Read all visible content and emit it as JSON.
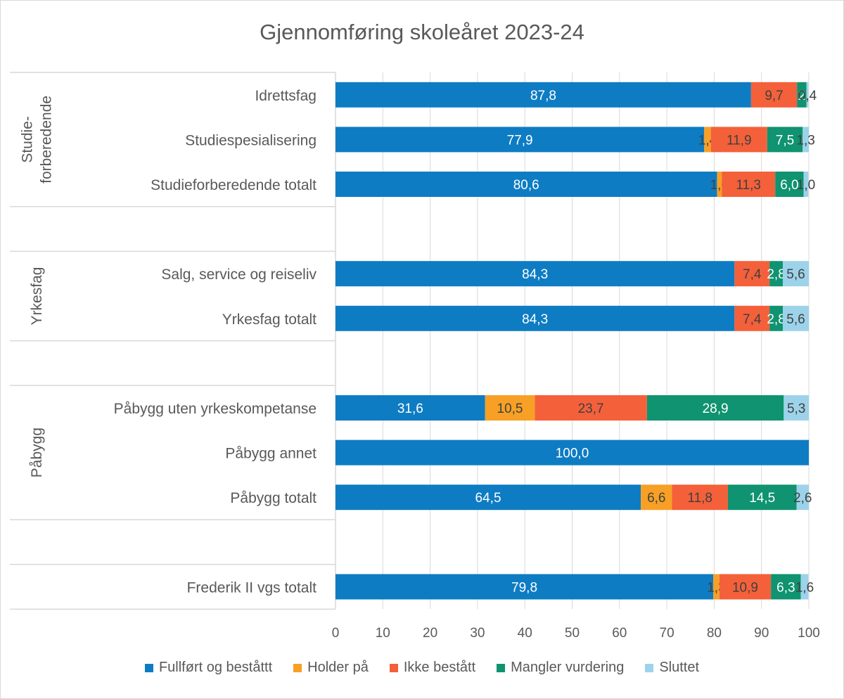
{
  "chart_data": {
    "type": "bar",
    "orientation": "horizontal",
    "stacked": true,
    "title": "Gjennomføring skoleåret 2023-24",
    "xlim": [
      0,
      100
    ],
    "x_ticks": [
      0,
      10,
      20,
      30,
      40,
      50,
      60,
      70,
      80,
      90,
      100
    ],
    "grid": true,
    "legend_position": "bottom",
    "groups": [
      {
        "label": "Studie-\nforberedende",
        "label_lines": [
          "Studie-",
          "forberedende"
        ],
        "categories": [
          "Idrettsfag",
          "Studiespesialisering",
          "Studieforberedende totalt"
        ]
      },
      {
        "label": "Yrkesfag",
        "label_lines": [
          "Yrkesfag"
        ],
        "categories": [
          "Salg, service og reiseliv",
          "Yrkesfag totalt"
        ]
      },
      {
        "label": "Påbygg",
        "label_lines": [
          "Påbygg"
        ],
        "categories": [
          "Påbygg uten yrkeskompetanse",
          "Påbygg annet",
          "Påbygg totalt"
        ]
      },
      {
        "label": "",
        "label_lines": [],
        "categories": [
          "Frederik II vgs totalt"
        ]
      }
    ],
    "categories": [
      "Idrettsfag",
      "Studiespesialisering",
      "Studieforberedende totalt",
      "Salg, service og reiseliv",
      "Yrkesfag totalt",
      "Påbygg uten yrkeskompetanse",
      "Påbygg annet",
      "Påbygg totalt",
      "Frederik II vgs totalt"
    ],
    "series": [
      {
        "name": "Fullført og beståttt",
        "color": "#0e7cc3",
        "values": [
          87.8,
          77.9,
          80.6,
          84.3,
          84.3,
          31.6,
          100.0,
          64.5,
          79.8
        ],
        "labels": [
          "87,8",
          "77,9",
          "80,6",
          "84,3",
          "84,3",
          "31,6",
          "100,0",
          "64,5",
          "79,8"
        ]
      },
      {
        "name": "Holder på",
        "color": "#f7a025",
        "values": [
          0,
          1.4,
          1.0,
          0,
          0,
          10.5,
          0,
          6.6,
          1.3
        ],
        "labels": [
          "",
          "1,4",
          "1,0",
          "",
          "",
          "10,5",
          "",
          "6,6",
          "1,3"
        ]
      },
      {
        "name": "Ikke bestått",
        "color": "#f4603a",
        "values": [
          9.7,
          11.9,
          11.3,
          7.4,
          7.4,
          23.7,
          0,
          11.8,
          10.9
        ],
        "labels": [
          "9,7",
          "11,9",
          "11,3",
          "7,4",
          "7,4",
          "23,7",
          "",
          "11,8",
          "10,9"
        ]
      },
      {
        "name": "Mangler vurdering",
        "color": "#0f9370",
        "values": [
          2.0,
          7.5,
          6.0,
          2.8,
          2.8,
          28.9,
          0,
          14.5,
          6.3
        ],
        "labels": [
          "2",
          "7,5",
          "6,0",
          "2,8",
          "2,8",
          "28,9",
          "",
          "14,5",
          "6,3"
        ]
      },
      {
        "name": "Sluttet",
        "color": "#9dd3ea",
        "values": [
          0.4,
          1.3,
          1.0,
          5.6,
          5.6,
          5.3,
          0,
          2.6,
          1.6
        ],
        "labels": [
          "0,4",
          "1,3",
          "1,0",
          "5,6",
          "5,6",
          "5,3",
          "",
          "2,6",
          "1,6"
        ]
      }
    ]
  }
}
